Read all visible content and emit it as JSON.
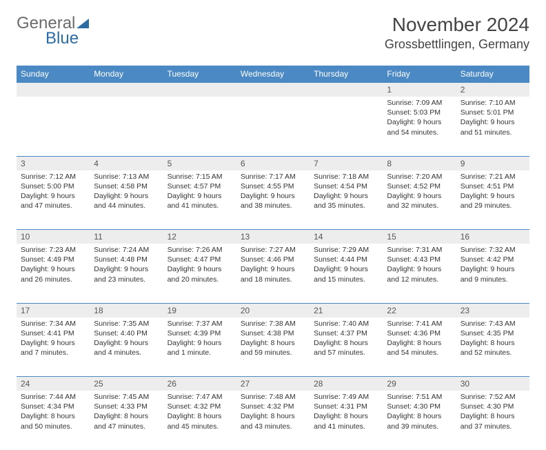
{
  "brand": {
    "part1": "General",
    "part2": "Blue"
  },
  "title": "November 2024",
  "location": "Grossbettlingen, Germany",
  "colors": {
    "header_bg": "#4a89c4",
    "header_text": "#ffffff",
    "daynum_bg": "#ededed",
    "border": "#4a89c4",
    "text": "#333333",
    "brand_gray": "#6b6b6b",
    "brand_blue": "#2d6ca2"
  },
  "day_headers": [
    "Sunday",
    "Monday",
    "Tuesday",
    "Wednesday",
    "Thursday",
    "Friday",
    "Saturday"
  ],
  "weeks": [
    {
      "nums": [
        "",
        "",
        "",
        "",
        "",
        "1",
        "2"
      ],
      "cells": [
        null,
        null,
        null,
        null,
        null,
        {
          "sunrise": "Sunrise: 7:09 AM",
          "sunset": "Sunset: 5:03 PM",
          "daylight1": "Daylight: 9 hours",
          "daylight2": "and 54 minutes."
        },
        {
          "sunrise": "Sunrise: 7:10 AM",
          "sunset": "Sunset: 5:01 PM",
          "daylight1": "Daylight: 9 hours",
          "daylight2": "and 51 minutes."
        }
      ]
    },
    {
      "nums": [
        "3",
        "4",
        "5",
        "6",
        "7",
        "8",
        "9"
      ],
      "cells": [
        {
          "sunrise": "Sunrise: 7:12 AM",
          "sunset": "Sunset: 5:00 PM",
          "daylight1": "Daylight: 9 hours",
          "daylight2": "and 47 minutes."
        },
        {
          "sunrise": "Sunrise: 7:13 AM",
          "sunset": "Sunset: 4:58 PM",
          "daylight1": "Daylight: 9 hours",
          "daylight2": "and 44 minutes."
        },
        {
          "sunrise": "Sunrise: 7:15 AM",
          "sunset": "Sunset: 4:57 PM",
          "daylight1": "Daylight: 9 hours",
          "daylight2": "and 41 minutes."
        },
        {
          "sunrise": "Sunrise: 7:17 AM",
          "sunset": "Sunset: 4:55 PM",
          "daylight1": "Daylight: 9 hours",
          "daylight2": "and 38 minutes."
        },
        {
          "sunrise": "Sunrise: 7:18 AM",
          "sunset": "Sunset: 4:54 PM",
          "daylight1": "Daylight: 9 hours",
          "daylight2": "and 35 minutes."
        },
        {
          "sunrise": "Sunrise: 7:20 AM",
          "sunset": "Sunset: 4:52 PM",
          "daylight1": "Daylight: 9 hours",
          "daylight2": "and 32 minutes."
        },
        {
          "sunrise": "Sunrise: 7:21 AM",
          "sunset": "Sunset: 4:51 PM",
          "daylight1": "Daylight: 9 hours",
          "daylight2": "and 29 minutes."
        }
      ]
    },
    {
      "nums": [
        "10",
        "11",
        "12",
        "13",
        "14",
        "15",
        "16"
      ],
      "cells": [
        {
          "sunrise": "Sunrise: 7:23 AM",
          "sunset": "Sunset: 4:49 PM",
          "daylight1": "Daylight: 9 hours",
          "daylight2": "and 26 minutes."
        },
        {
          "sunrise": "Sunrise: 7:24 AM",
          "sunset": "Sunset: 4:48 PM",
          "daylight1": "Daylight: 9 hours",
          "daylight2": "and 23 minutes."
        },
        {
          "sunrise": "Sunrise: 7:26 AM",
          "sunset": "Sunset: 4:47 PM",
          "daylight1": "Daylight: 9 hours",
          "daylight2": "and 20 minutes."
        },
        {
          "sunrise": "Sunrise: 7:27 AM",
          "sunset": "Sunset: 4:46 PM",
          "daylight1": "Daylight: 9 hours",
          "daylight2": "and 18 minutes."
        },
        {
          "sunrise": "Sunrise: 7:29 AM",
          "sunset": "Sunset: 4:44 PM",
          "daylight1": "Daylight: 9 hours",
          "daylight2": "and 15 minutes."
        },
        {
          "sunrise": "Sunrise: 7:31 AM",
          "sunset": "Sunset: 4:43 PM",
          "daylight1": "Daylight: 9 hours",
          "daylight2": "and 12 minutes."
        },
        {
          "sunrise": "Sunrise: 7:32 AM",
          "sunset": "Sunset: 4:42 PM",
          "daylight1": "Daylight: 9 hours",
          "daylight2": "and 9 minutes."
        }
      ]
    },
    {
      "nums": [
        "17",
        "18",
        "19",
        "20",
        "21",
        "22",
        "23"
      ],
      "cells": [
        {
          "sunrise": "Sunrise: 7:34 AM",
          "sunset": "Sunset: 4:41 PM",
          "daylight1": "Daylight: 9 hours",
          "daylight2": "and 7 minutes."
        },
        {
          "sunrise": "Sunrise: 7:35 AM",
          "sunset": "Sunset: 4:40 PM",
          "daylight1": "Daylight: 9 hours",
          "daylight2": "and 4 minutes."
        },
        {
          "sunrise": "Sunrise: 7:37 AM",
          "sunset": "Sunset: 4:39 PM",
          "daylight1": "Daylight: 9 hours",
          "daylight2": "and 1 minute."
        },
        {
          "sunrise": "Sunrise: 7:38 AM",
          "sunset": "Sunset: 4:38 PM",
          "daylight1": "Daylight: 8 hours",
          "daylight2": "and 59 minutes."
        },
        {
          "sunrise": "Sunrise: 7:40 AM",
          "sunset": "Sunset: 4:37 PM",
          "daylight1": "Daylight: 8 hours",
          "daylight2": "and 57 minutes."
        },
        {
          "sunrise": "Sunrise: 7:41 AM",
          "sunset": "Sunset: 4:36 PM",
          "daylight1": "Daylight: 8 hours",
          "daylight2": "and 54 minutes."
        },
        {
          "sunrise": "Sunrise: 7:43 AM",
          "sunset": "Sunset: 4:35 PM",
          "daylight1": "Daylight: 8 hours",
          "daylight2": "and 52 minutes."
        }
      ]
    },
    {
      "nums": [
        "24",
        "25",
        "26",
        "27",
        "28",
        "29",
        "30"
      ],
      "cells": [
        {
          "sunrise": "Sunrise: 7:44 AM",
          "sunset": "Sunset: 4:34 PM",
          "daylight1": "Daylight: 8 hours",
          "daylight2": "and 50 minutes."
        },
        {
          "sunrise": "Sunrise: 7:45 AM",
          "sunset": "Sunset: 4:33 PM",
          "daylight1": "Daylight: 8 hours",
          "daylight2": "and 47 minutes."
        },
        {
          "sunrise": "Sunrise: 7:47 AM",
          "sunset": "Sunset: 4:32 PM",
          "daylight1": "Daylight: 8 hours",
          "daylight2": "and 45 minutes."
        },
        {
          "sunrise": "Sunrise: 7:48 AM",
          "sunset": "Sunset: 4:32 PM",
          "daylight1": "Daylight: 8 hours",
          "daylight2": "and 43 minutes."
        },
        {
          "sunrise": "Sunrise: 7:49 AM",
          "sunset": "Sunset: 4:31 PM",
          "daylight1": "Daylight: 8 hours",
          "daylight2": "and 41 minutes."
        },
        {
          "sunrise": "Sunrise: 7:51 AM",
          "sunset": "Sunset: 4:30 PM",
          "daylight1": "Daylight: 8 hours",
          "daylight2": "and 39 minutes."
        },
        {
          "sunrise": "Sunrise: 7:52 AM",
          "sunset": "Sunset: 4:30 PM",
          "daylight1": "Daylight: 8 hours",
          "daylight2": "and 37 minutes."
        }
      ]
    }
  ]
}
